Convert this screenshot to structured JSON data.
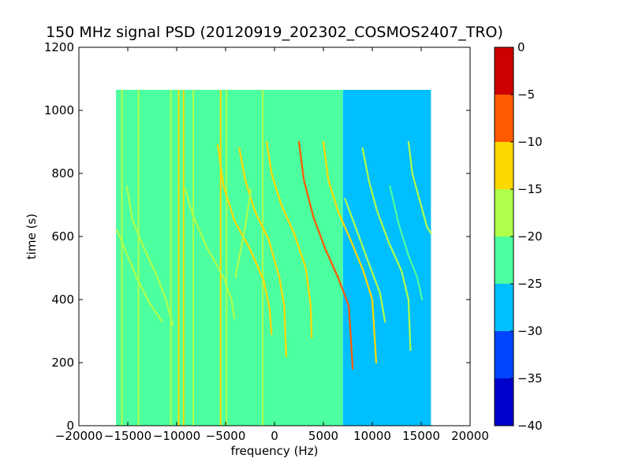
{
  "chart_data": {
    "type": "heatmap",
    "title": "150 MHz signal PSD (20120919_202302_COSMOS2407_TRO)",
    "xlabel": "frequency (Hz)",
    "ylabel": "time (s)",
    "xlim": [
      -20000,
      20000
    ],
    "ylim": [
      0,
      1200
    ],
    "x_ticks": [
      -20000,
      -15000,
      -10000,
      -5000,
      0,
      5000,
      10000,
      15000,
      20000
    ],
    "y_ticks": [
      0,
      200,
      400,
      600,
      800,
      1000,
      1200
    ],
    "data_extent": {
      "x": [
        -16200,
        16000
      ],
      "y": [
        0,
        1065
      ]
    },
    "background_level_by_frequency": [
      {
        "x": [
          -16200,
          7000
        ],
        "level": -22.5
      },
      {
        "x": [
          7000,
          16000
        ],
        "level": -27.5
      }
    ],
    "vertical_lines": [
      {
        "x": -15600,
        "level": -17
      },
      {
        "x": -13900,
        "level": -18
      },
      {
        "x": -10600,
        "level": -17
      },
      {
        "x": -9800,
        "level": -14
      },
      {
        "x": -9300,
        "level": -13
      },
      {
        "x": -8300,
        "level": -15
      },
      {
        "x": -5500,
        "level": -14
      },
      {
        "x": -4900,
        "level": -16
      },
      {
        "x": -1200,
        "level": -18
      }
    ],
    "tracks": [
      {
        "points": [
          [
            -15100,
            760
          ],
          [
            -14500,
            650
          ],
          [
            -13300,
            560
          ],
          [
            -12100,
            480
          ],
          [
            -11100,
            400
          ],
          [
            -10400,
            320
          ]
        ],
        "level": -17
      },
      {
        "points": [
          [
            -16100,
            620
          ],
          [
            -15300,
            560
          ],
          [
            -14100,
            470
          ],
          [
            -12800,
            390
          ],
          [
            -11500,
            330
          ]
        ],
        "level": -18
      },
      {
        "points": [
          [
            -9100,
            750
          ],
          [
            -8500,
            680
          ],
          [
            -7000,
            570
          ],
          [
            -5200,
            470
          ],
          [
            -4400,
            400
          ],
          [
            -4100,
            340
          ]
        ],
        "level": -16
      },
      {
        "points": [
          [
            -5800,
            890
          ],
          [
            -5200,
            760
          ],
          [
            -4100,
            650
          ],
          [
            -2500,
            560
          ],
          [
            -1100,
            460
          ],
          [
            -500,
            370
          ],
          [
            -300,
            290
          ]
        ],
        "level": -14
      },
      {
        "points": [
          [
            -3600,
            880
          ],
          [
            -3000,
            780
          ],
          [
            -2000,
            680
          ],
          [
            -600,
            590
          ],
          [
            500,
            470
          ],
          [
            1000,
            380
          ],
          [
            1200,
            220
          ]
        ],
        "level": -10
      },
      {
        "points": [
          [
            -800,
            900
          ],
          [
            -300,
            800
          ],
          [
            700,
            700
          ],
          [
            2000,
            610
          ],
          [
            3200,
            500
          ],
          [
            3700,
            380
          ],
          [
            3800,
            280
          ]
        ],
        "level": -12
      },
      {
        "points": [
          [
            -2400,
            750
          ],
          [
            -3000,
            630
          ],
          [
            -3500,
            550
          ],
          [
            -4000,
            470
          ]
        ],
        "level": -19
      },
      {
        "points": [
          [
            2500,
            900
          ],
          [
            3000,
            780
          ],
          [
            4000,
            660
          ],
          [
            5200,
            560
          ],
          [
            6500,
            470
          ],
          [
            7600,
            380
          ],
          [
            8000,
            180
          ]
        ],
        "level": -8
      },
      {
        "points": [
          [
            5000,
            900
          ],
          [
            5500,
            780
          ],
          [
            6500,
            680
          ],
          [
            7900,
            580
          ],
          [
            9100,
            490
          ],
          [
            10000,
            400
          ],
          [
            10400,
            200
          ]
        ],
        "level": -11
      },
      {
        "points": [
          [
            9000,
            880
          ],
          [
            9700,
            770
          ],
          [
            10500,
            680
          ],
          [
            11700,
            580
          ],
          [
            13000,
            490
          ],
          [
            13700,
            400
          ],
          [
            13900,
            240
          ]
        ],
        "level": -15
      },
      {
        "points": [
          [
            7200,
            720
          ],
          [
            8400,
            620
          ],
          [
            9700,
            510
          ],
          [
            10800,
            420
          ],
          [
            11300,
            330
          ]
        ],
        "level": -18
      },
      {
        "points": [
          [
            11800,
            760
          ],
          [
            12700,
            640
          ],
          [
            13700,
            540
          ],
          [
            14600,
            470
          ],
          [
            15100,
            400
          ]
        ],
        "level": -21
      },
      {
        "points": [
          [
            13700,
            900
          ],
          [
            14100,
            800
          ],
          [
            14800,
            720
          ],
          [
            15600,
            630
          ],
          [
            16000,
            610
          ]
        ],
        "level": -18
      }
    ],
    "colorbar": {
      "range": [
        -40,
        0
      ],
      "ticks": [
        0,
        -5,
        -10,
        -15,
        -20,
        -25,
        -30,
        -35,
        -40
      ],
      "bins": [
        {
          "min": -40,
          "max": -35,
          "color": "#0000cc"
        },
        {
          "min": -35,
          "max": -30,
          "color": "#0044ff"
        },
        {
          "min": -30,
          "max": -25,
          "color": "#00bfff"
        },
        {
          "min": -25,
          "max": -20,
          "color": "#4cff9f"
        },
        {
          "min": -20,
          "max": -15,
          "color": "#b0ff4a"
        },
        {
          "min": -15,
          "max": -10,
          "color": "#ffd700"
        },
        {
          "min": -10,
          "max": -5,
          "color": "#ff5a00"
        },
        {
          "min": -5,
          "max": 0,
          "color": "#cc0000"
        }
      ]
    }
  }
}
